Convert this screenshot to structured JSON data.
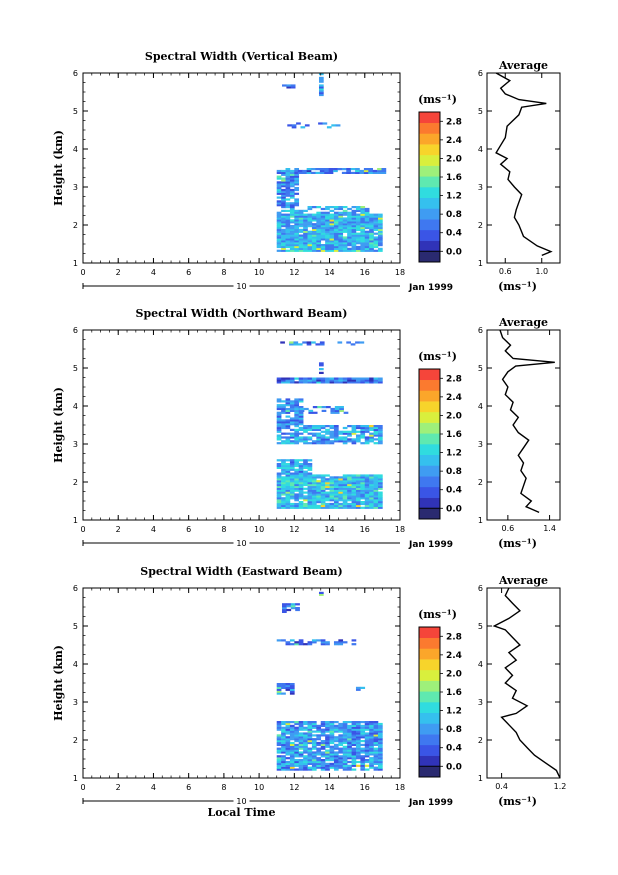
{
  "palette": [
    "#2a2a70",
    "#3033b8",
    "#3a55e6",
    "#3f78f0",
    "#3f9cf2",
    "#35c0ee",
    "#30dcdf",
    "#5fe9b0",
    "#9ef07a",
    "#d9ef3d",
    "#f7d42b",
    "#fba62a",
    "#fb7a2f",
    "#f5453a"
  ],
  "chart_data": [
    {
      "type": "heatmap",
      "title": "Spectral Width (Vertical Beam)",
      "xlabel": "",
      "ylabel": "Height (km)",
      "xlim": [
        0,
        18
      ],
      "ylim": [
        1,
        6
      ],
      "x_ticks": [
        "0",
        "2",
        "4",
        "6",
        "8",
        "10",
        "12",
        "14",
        "16",
        "18"
      ],
      "y_ticks": [
        "1",
        "2",
        "3",
        "4",
        "5",
        "6"
      ],
      "date_marker": {
        "label": "10",
        "date_label": "Jan 1999"
      },
      "colorbar": {
        "unit": "(ms⁻¹)",
        "ticks": [
          "0.0",
          "0.4",
          "0.8",
          "1.2",
          "1.6",
          "2.0",
          "2.4",
          "2.8"
        ],
        "range": [
          0,
          3.0
        ]
      },
      "data_regions": [
        {
          "t": [
            11.0,
            17.0
          ],
          "h": [
            1.3,
            2.3
          ],
          "density": 0.95,
          "mean": 0.95
        },
        {
          "t": [
            11.0,
            16.2
          ],
          "h": [
            2.3,
            2.5
          ],
          "density": 0.55,
          "mean": 0.85
        },
        {
          "t": [
            11.0,
            12.2
          ],
          "h": [
            2.5,
            3.5
          ],
          "density": 0.85,
          "mean": 0.75
        },
        {
          "t": [
            12.2,
            17.0
          ],
          "h": [
            3.35,
            3.5
          ],
          "density": 0.85,
          "mean": 0.65
        },
        {
          "t": [
            11.6,
            14.8
          ],
          "h": [
            4.55,
            4.7
          ],
          "density": 0.35,
          "mean": 0.6
        },
        {
          "t": [
            11.3,
            12.0
          ],
          "h": [
            5.6,
            5.7
          ],
          "density": 0.7,
          "mean": 0.55
        },
        {
          "t": [
            13.4,
            13.6
          ],
          "h": [
            5.4,
            6.0
          ],
          "density": 0.8,
          "mean": 0.8
        }
      ],
      "average": {
        "title": "Average",
        "xlabel": "(ms⁻¹)",
        "xlim": [
          0.4,
          1.2
        ],
        "x_ticks": [
          "0.6",
          "1.0"
        ],
        "x_tick_values": [
          0.6,
          1.0
        ],
        "y_ticks": [
          "1",
          "2",
          "3",
          "4",
          "5",
          "6"
        ],
        "profile": [
          [
            1.2,
            1.0
          ],
          [
            1.3,
            1.1
          ],
          [
            1.45,
            0.95
          ],
          [
            1.7,
            0.8
          ],
          [
            2.0,
            0.75
          ],
          [
            2.2,
            0.7
          ],
          [
            2.4,
            0.72
          ],
          [
            2.6,
            0.75
          ],
          [
            2.8,
            0.78
          ],
          [
            3.0,
            0.7
          ],
          [
            3.2,
            0.63
          ],
          [
            3.4,
            0.65
          ],
          [
            3.6,
            0.55
          ],
          [
            3.75,
            0.62
          ],
          [
            3.9,
            0.5
          ],
          [
            4.1,
            0.55
          ],
          [
            4.3,
            0.6
          ],
          [
            4.6,
            0.62
          ],
          [
            4.9,
            0.75
          ],
          [
            5.1,
            0.78
          ],
          [
            5.2,
            1.05
          ],
          [
            5.3,
            0.75
          ],
          [
            5.45,
            0.6
          ],
          [
            5.6,
            0.55
          ],
          [
            5.8,
            0.65
          ],
          [
            6.0,
            0.5
          ]
        ]
      }
    },
    {
      "type": "heatmap",
      "title": "Spectral Width (Northward Beam)",
      "xlabel": "",
      "ylabel": "Height (km)",
      "xlim": [
        0,
        18
      ],
      "ylim": [
        1,
        6
      ],
      "x_ticks": [
        "0",
        "2",
        "4",
        "6",
        "8",
        "10",
        "12",
        "14",
        "16",
        "18"
      ],
      "y_ticks": [
        "1",
        "2",
        "3",
        "4",
        "5",
        "6"
      ],
      "date_marker": {
        "label": "10",
        "date_label": "Jan 1999"
      },
      "colorbar": {
        "unit": "(ms⁻¹)",
        "ticks": [
          "0.0",
          "0.4",
          "0.8",
          "1.2",
          "1.6",
          "2.0",
          "2.4",
          "2.8"
        ],
        "range": [
          0,
          3.0
        ]
      },
      "data_regions": [
        {
          "t": [
            11.0,
            17.0
          ],
          "h": [
            1.3,
            2.2
          ],
          "density": 0.95,
          "mean": 1.0
        },
        {
          "t": [
            11.0,
            13.0
          ],
          "h": [
            2.2,
            2.6
          ],
          "density": 0.9,
          "mean": 0.9
        },
        {
          "t": [
            11.0,
            17.0
          ],
          "h": [
            3.0,
            3.5
          ],
          "density": 0.75,
          "mean": 0.85
        },
        {
          "t": [
            11.0,
            12.3
          ],
          "h": [
            3.5,
            4.2
          ],
          "density": 0.8,
          "mean": 0.7
        },
        {
          "t": [
            12.3,
            15.0
          ],
          "h": [
            3.8,
            4.0
          ],
          "density": 0.45,
          "mean": 0.65
        },
        {
          "t": [
            11.0,
            17.0
          ],
          "h": [
            4.6,
            4.75
          ],
          "density": 0.95,
          "mean": 0.55
        },
        {
          "t": [
            11.2,
            15.8
          ],
          "h": [
            5.6,
            5.7
          ],
          "density": 0.45,
          "mean": 0.6
        },
        {
          "t": [
            13.4,
            13.6
          ],
          "h": [
            4.8,
            5.2
          ],
          "density": 0.6,
          "mean": 0.55
        }
      ],
      "average": {
        "title": "Average",
        "xlabel": "(ms⁻¹)",
        "xlim": [
          0.2,
          1.6
        ],
        "x_ticks": [
          "0.6",
          "1.4"
        ],
        "x_tick_values": [
          0.6,
          1.4
        ],
        "y_ticks": [
          "1",
          "2",
          "3",
          "4",
          "5",
          "6"
        ],
        "profile": [
          [
            1.2,
            1.2
          ],
          [
            1.35,
            0.95
          ],
          [
            1.5,
            1.05
          ],
          [
            1.7,
            0.85
          ],
          [
            1.9,
            0.9
          ],
          [
            2.1,
            0.95
          ],
          [
            2.3,
            0.85
          ],
          [
            2.5,
            0.9
          ],
          [
            2.7,
            0.8
          ],
          [
            2.9,
            0.9
          ],
          [
            3.1,
            1.0
          ],
          [
            3.3,
            0.8
          ],
          [
            3.5,
            0.7
          ],
          [
            3.7,
            0.8
          ],
          [
            3.9,
            0.65
          ],
          [
            4.1,
            0.7
          ],
          [
            4.3,
            0.55
          ],
          [
            4.5,
            0.6
          ],
          [
            4.7,
            0.5
          ],
          [
            4.9,
            0.6
          ],
          [
            5.05,
            0.75
          ],
          [
            5.15,
            1.5
          ],
          [
            5.25,
            0.7
          ],
          [
            5.45,
            0.55
          ],
          [
            5.6,
            0.65
          ],
          [
            5.8,
            0.5
          ],
          [
            6.0,
            0.45
          ]
        ]
      }
    },
    {
      "type": "heatmap",
      "title": "Spectral Width (Eastward Beam)",
      "xlabel": "Local Time",
      "ylabel": "Height (km)",
      "xlim": [
        0,
        18
      ],
      "ylim": [
        1,
        6
      ],
      "x_ticks": [
        "0",
        "2",
        "4",
        "6",
        "8",
        "10",
        "12",
        "14",
        "16",
        "18"
      ],
      "y_ticks": [
        "1",
        "2",
        "3",
        "4",
        "5",
        "6"
      ],
      "date_marker": {
        "label": "10",
        "date_label": "Jan 1999"
      },
      "colorbar": {
        "unit": "(ms⁻¹)",
        "ticks": [
          "0.0",
          "0.4",
          "0.8",
          "1.2",
          "1.6",
          "2.0",
          "2.4",
          "2.8"
        ],
        "range": [
          0,
          3.0
        ]
      },
      "data_regions": [
        {
          "t": [
            11.0,
            17.0
          ],
          "h": [
            1.2,
            2.5
          ],
          "density": 0.9,
          "mean": 0.8
        },
        {
          "t": [
            11.0,
            12.0
          ],
          "h": [
            3.2,
            3.5
          ],
          "density": 0.8,
          "mean": 0.6
        },
        {
          "t": [
            15.5,
            16.0
          ],
          "h": [
            3.3,
            3.4
          ],
          "density": 0.6,
          "mean": 0.6
        },
        {
          "t": [
            11.0,
            15.8
          ],
          "h": [
            4.5,
            4.65
          ],
          "density": 0.35,
          "mean": 0.55
        },
        {
          "t": [
            11.3,
            12.1
          ],
          "h": [
            5.35,
            5.6
          ],
          "density": 0.6,
          "mean": 0.55
        },
        {
          "t": [
            13.4,
            13.6
          ],
          "h": [
            5.6,
            5.9
          ],
          "density": 0.7,
          "mean": 0.55
        }
      ],
      "average": {
        "title": "Average",
        "xlabel": "(ms⁻¹)",
        "xlim": [
          0.2,
          1.2
        ],
        "x_ticks": [
          "0.4",
          "1.2"
        ],
        "x_tick_values": [
          0.4,
          1.2
        ],
        "y_ticks": [
          "1",
          "2",
          "3",
          "4",
          "5",
          "6"
        ],
        "profile": [
          [
            1.0,
            1.2
          ],
          [
            1.2,
            1.15
          ],
          [
            1.4,
            1.0
          ],
          [
            1.6,
            0.85
          ],
          [
            1.8,
            0.75
          ],
          [
            2.0,
            0.65
          ],
          [
            2.2,
            0.6
          ],
          [
            2.4,
            0.5
          ],
          [
            2.6,
            0.4
          ],
          [
            2.7,
            0.6
          ],
          [
            2.9,
            0.75
          ],
          [
            3.1,
            0.55
          ],
          [
            3.3,
            0.6
          ],
          [
            3.5,
            0.45
          ],
          [
            3.7,
            0.55
          ],
          [
            3.9,
            0.45
          ],
          [
            4.1,
            0.6
          ],
          [
            4.3,
            0.5
          ],
          [
            4.5,
            0.65
          ],
          [
            4.7,
            0.55
          ],
          [
            4.9,
            0.45
          ],
          [
            5.0,
            0.3
          ],
          [
            5.2,
            0.5
          ],
          [
            5.4,
            0.65
          ],
          [
            5.6,
            0.55
          ],
          [
            5.8,
            0.45
          ],
          [
            6.0,
            0.5
          ]
        ]
      }
    }
  ]
}
